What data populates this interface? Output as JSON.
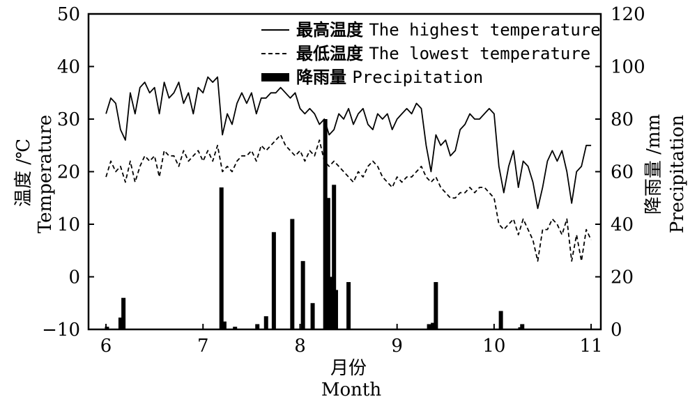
{
  "chart_data": {
    "type": "line",
    "xlabel_cn": "月份",
    "xlabel_en": "Month",
    "ylabel_left_cn": "温度 /℃",
    "ylabel_left_en": "Temperature",
    "ylabel_right_cn": "降雨量 /mm",
    "ylabel_right_en": "Precipitation",
    "xlim": [
      5.82,
      11.1
    ],
    "ylim_left": [
      -10,
      50
    ],
    "ylim_right": [
      0,
      120
    ],
    "xticks": [
      6,
      7,
      8,
      9,
      10,
      11
    ],
    "xtick_labels": [
      "6",
      "7",
      "8",
      "9",
      "10",
      "11"
    ],
    "yticks_left": [
      -10,
      0,
      10,
      20,
      30,
      40,
      50
    ],
    "ytick_labels_left": [
      "−10",
      "0",
      "10",
      "20",
      "30",
      "40",
      "50"
    ],
    "yticks_right": [
      0,
      20,
      40,
      60,
      80,
      100,
      120
    ],
    "ytick_labels_right": [
      "0",
      "20",
      "40",
      "60",
      "80",
      "100",
      "120"
    ],
    "legend_position": "top-right",
    "legend": [
      {
        "cn": "最高温度",
        "en": "The highest temperature",
        "style": "solid"
      },
      {
        "cn": "最低温度",
        "en": "The lowest temperature",
        "style": "dashed"
      },
      {
        "cn": "降雨量",
        "en": "Precipitation",
        "style": "bar"
      }
    ],
    "series": [
      {
        "name": "最高温度 The highest temperature",
        "axis": "left",
        "style": "solid",
        "x": [
          6.0,
          6.05,
          6.1,
          6.15,
          6.2,
          6.25,
          6.3,
          6.35,
          6.4,
          6.45,
          6.5,
          6.55,
          6.6,
          6.65,
          6.7,
          6.75,
          6.8,
          6.85,
          6.9,
          6.95,
          7.0,
          7.05,
          7.1,
          7.15,
          7.2,
          7.25,
          7.3,
          7.35,
          7.4,
          7.45,
          7.5,
          7.55,
          7.6,
          7.65,
          7.7,
          7.75,
          7.8,
          7.85,
          7.9,
          7.95,
          8.0,
          8.05,
          8.1,
          8.15,
          8.2,
          8.25,
          8.3,
          8.35,
          8.4,
          8.45,
          8.5,
          8.55,
          8.6,
          8.65,
          8.7,
          8.75,
          8.8,
          8.85,
          8.9,
          8.95,
          9.0,
          9.05,
          9.1,
          9.15,
          9.2,
          9.25,
          9.3,
          9.35,
          9.4,
          9.45,
          9.5,
          9.55,
          9.6,
          9.65,
          9.7,
          9.75,
          9.8,
          9.85,
          9.9,
          9.95,
          10.0,
          10.05,
          10.1,
          10.15,
          10.2,
          10.25,
          10.3,
          10.35,
          10.4,
          10.45,
          10.5,
          10.55,
          10.6,
          10.65,
          10.7,
          10.75,
          10.8,
          10.85,
          10.9,
          10.95,
          11.0
        ],
        "values": [
          31,
          34,
          33,
          28,
          26,
          35,
          31,
          36,
          37,
          35,
          36,
          31,
          37,
          34,
          35,
          37,
          33,
          35,
          31,
          36,
          35,
          38,
          37,
          38,
          27,
          31,
          29,
          33,
          35,
          33,
          35,
          31,
          34,
          34,
          35,
          35,
          36,
          35,
          34,
          35,
          32,
          31,
          32,
          31,
          29,
          30,
          27,
          28,
          31,
          30,
          32,
          29,
          31,
          32,
          29,
          28,
          31,
          30,
          31,
          28,
          30,
          31,
          32,
          31,
          33,
          32,
          25,
          20,
          27,
          25,
          26,
          23,
          24,
          28,
          29,
          31,
          30,
          30,
          31,
          32,
          31,
          21,
          16,
          21,
          24,
          17,
          22,
          21,
          18,
          13,
          17,
          22,
          24,
          22,
          24,
          20,
          14,
          20,
          21,
          25,
          25
        ]
      },
      {
        "name": "最低温度 The lowest temperature",
        "axis": "left",
        "style": "dashed",
        "x": [
          6.0,
          6.05,
          6.1,
          6.15,
          6.2,
          6.25,
          6.3,
          6.35,
          6.4,
          6.45,
          6.5,
          6.55,
          6.6,
          6.65,
          6.7,
          6.75,
          6.8,
          6.85,
          6.9,
          6.95,
          7.0,
          7.05,
          7.1,
          7.15,
          7.2,
          7.25,
          7.3,
          7.35,
          7.4,
          7.45,
          7.5,
          7.55,
          7.6,
          7.65,
          7.7,
          7.75,
          7.8,
          7.85,
          7.9,
          7.95,
          8.0,
          8.05,
          8.1,
          8.15,
          8.2,
          8.25,
          8.3,
          8.35,
          8.4,
          8.45,
          8.5,
          8.55,
          8.6,
          8.65,
          8.7,
          8.75,
          8.8,
          8.85,
          8.9,
          8.95,
          9.0,
          9.05,
          9.1,
          9.15,
          9.2,
          9.25,
          9.3,
          9.35,
          9.4,
          9.45,
          9.5,
          9.55,
          9.6,
          9.65,
          9.7,
          9.75,
          9.8,
          9.85,
          9.9,
          9.95,
          10.0,
          10.05,
          10.1,
          10.15,
          10.2,
          10.25,
          10.3,
          10.35,
          10.4,
          10.45,
          10.5,
          10.55,
          10.6,
          10.65,
          10.7,
          10.75,
          10.8,
          10.85,
          10.9,
          10.95,
          11.0
        ],
        "values": [
          19,
          22,
          20,
          21,
          18,
          22,
          18,
          21,
          23,
          22,
          23,
          19,
          24,
          23,
          23,
          21,
          24,
          22,
          23,
          24,
          22,
          24,
          22,
          25,
          20,
          21,
          20,
          22,
          23,
          23,
          24,
          22,
          25,
          24,
          25,
          26,
          27,
          25,
          24,
          23,
          24,
          22,
          24,
          23,
          26,
          22,
          21,
          22,
          21,
          20,
          19,
          18,
          20,
          19,
          21,
          22,
          21,
          19,
          18,
          17,
          19,
          18,
          19,
          19,
          20,
          21,
          19,
          18,
          19,
          17,
          16,
          15,
          15,
          16,
          16,
          17,
          16,
          17,
          17,
          16,
          15,
          10,
          9,
          10,
          11,
          8,
          11,
          9,
          7,
          3,
          9,
          9,
          11,
          10,
          8,
          11,
          3,
          8,
          3,
          9,
          7
        ]
      },
      {
        "name": "降雨量 Precipitation",
        "axis": "right",
        "style": "bar",
        "x": [
          6.01,
          6.15,
          6.18,
          7.19,
          7.22,
          7.33,
          7.56,
          7.65,
          7.73,
          7.92,
          8.03,
          8.13,
          8.26,
          8.29,
          8.31,
          8.33,
          8.35,
          8.37,
          8.5,
          9.33,
          9.37,
          9.4,
          10.07,
          10.27,
          10.29
        ],
        "values": [
          1,
          4.5,
          12,
          54,
          3,
          1,
          2,
          5,
          37,
          42,
          26,
          10,
          80,
          50,
          15,
          20,
          55,
          15,
          18,
          2,
          2.5,
          18,
          7,
          0.8,
          2
        ]
      }
    ]
  }
}
